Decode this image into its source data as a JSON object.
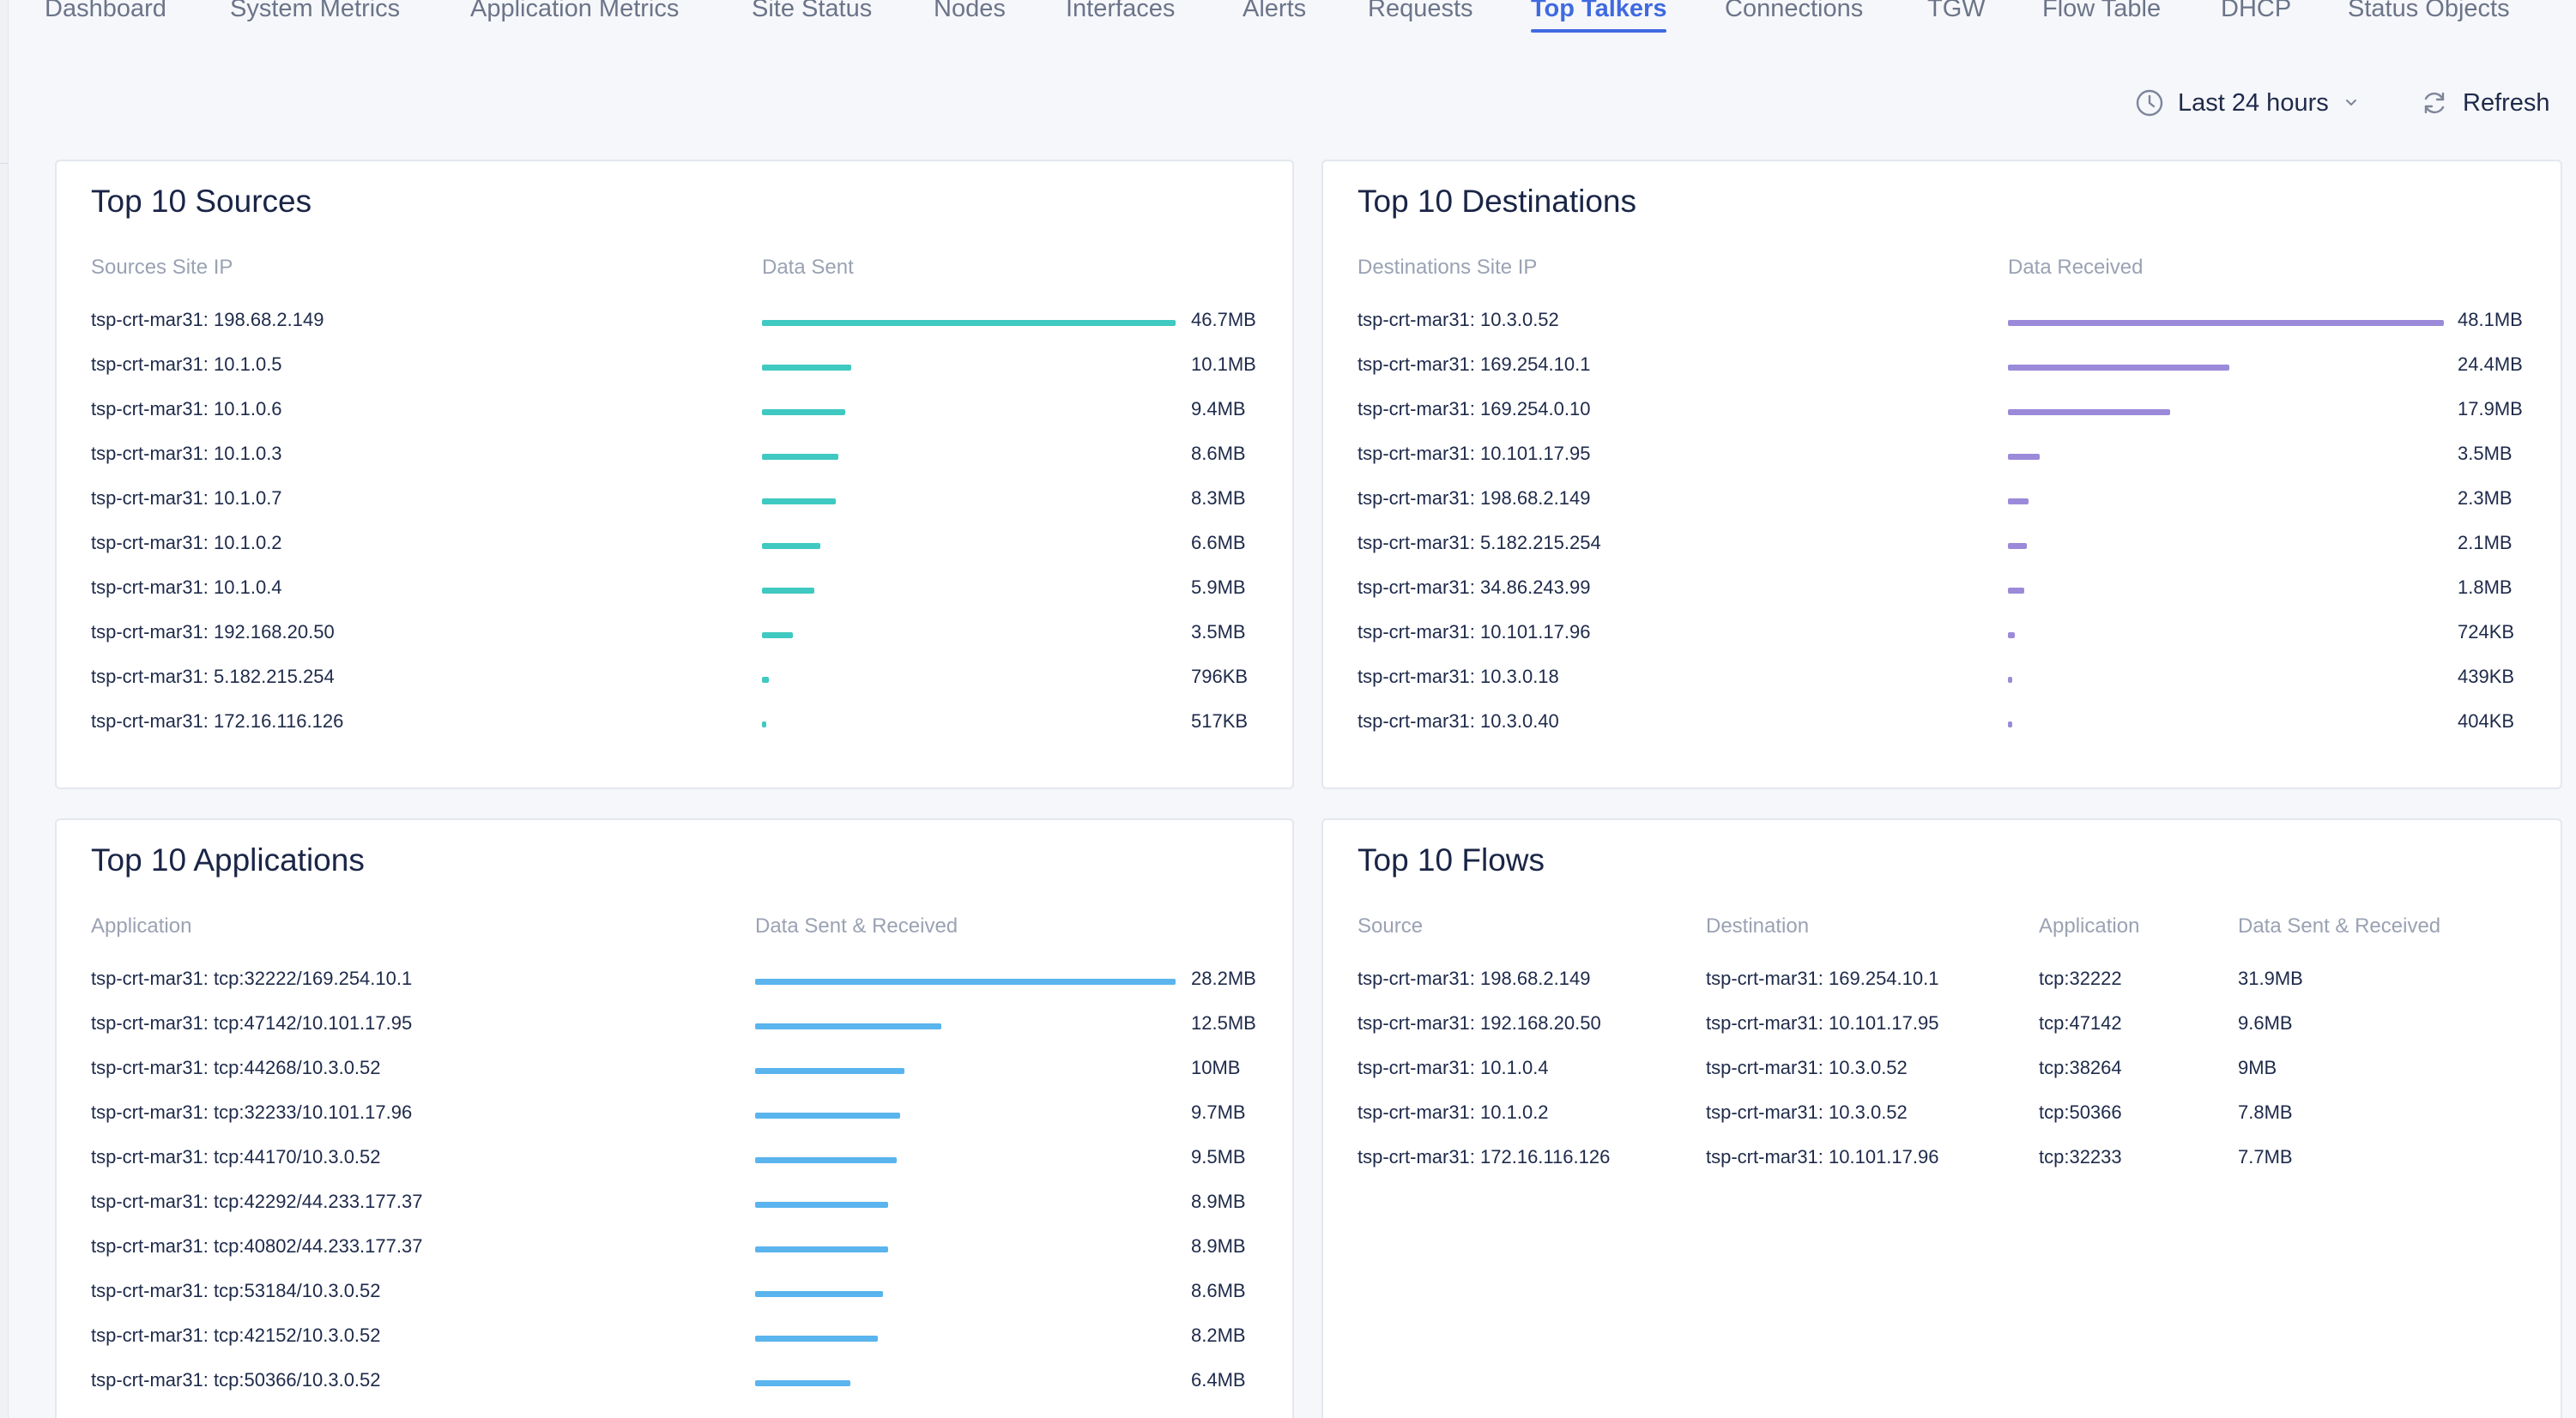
{
  "tabs": [
    {
      "label": "Dashboard",
      "active": false
    },
    {
      "label": "System Metrics",
      "active": false
    },
    {
      "label": "Application Metrics",
      "active": false
    },
    {
      "label": "Site Status",
      "active": false
    },
    {
      "label": "Nodes",
      "active": false
    },
    {
      "label": "Interfaces",
      "active": false
    },
    {
      "label": "Alerts",
      "active": false
    },
    {
      "label": "Requests",
      "active": false
    },
    {
      "label": "Top Talkers",
      "active": true
    },
    {
      "label": "Connections",
      "active": false
    },
    {
      "label": "TGW",
      "active": false
    },
    {
      "label": "Flow Table",
      "active": false
    },
    {
      "label": "DHCP",
      "active": false
    },
    {
      "label": "Status Objects",
      "active": false
    }
  ],
  "toolbar": {
    "time_range_label": "Last 24 hours",
    "time_icon": "clock-icon",
    "refresh_label": "Refresh",
    "refresh_icon": "refresh-icon"
  },
  "colors": {
    "accent": "#3f6ae0",
    "sources_bar": "#3fc9c1",
    "destinations_bar": "#9b8ad9",
    "applications_bar": "#5ab4ee"
  },
  "sources": {
    "title": "Top 10 Sources",
    "col_label": "Sources Site IP",
    "col_value": "Data Sent",
    "rows": [
      {
        "label": "tsp-crt-mar31: 198.68.2.149",
        "value": "46.7MB",
        "fraction": 1.0
      },
      {
        "label": "tsp-crt-mar31: 10.1.0.5",
        "value": "10.1MB",
        "fraction": 0.216
      },
      {
        "label": "tsp-crt-mar31: 10.1.0.6",
        "value": "9.4MB",
        "fraction": 0.201
      },
      {
        "label": "tsp-crt-mar31: 10.1.0.3",
        "value": "8.6MB",
        "fraction": 0.184
      },
      {
        "label": "tsp-crt-mar31: 10.1.0.7",
        "value": "8.3MB",
        "fraction": 0.178
      },
      {
        "label": "tsp-crt-mar31: 10.1.0.2",
        "value": "6.6MB",
        "fraction": 0.141
      },
      {
        "label": "tsp-crt-mar31: 10.1.0.4",
        "value": "5.9MB",
        "fraction": 0.126
      },
      {
        "label": "tsp-crt-mar31: 192.168.20.50",
        "value": "3.5MB",
        "fraction": 0.075
      },
      {
        "label": "tsp-crt-mar31: 5.182.215.254",
        "value": "796KB",
        "fraction": 0.017
      },
      {
        "label": "tsp-crt-mar31: 172.16.116.126",
        "value": "517KB",
        "fraction": 0.011
      }
    ]
  },
  "destinations": {
    "title": "Top 10 Destinations",
    "col_label": "Destinations Site IP",
    "col_value": "Data Received",
    "rows": [
      {
        "label": "tsp-crt-mar31: 10.3.0.52",
        "value": "48.1MB",
        "fraction": 1.0
      },
      {
        "label": "tsp-crt-mar31: 169.254.10.1",
        "value": "24.4MB",
        "fraction": 0.507
      },
      {
        "label": "tsp-crt-mar31: 169.254.0.10",
        "value": "17.9MB",
        "fraction": 0.372
      },
      {
        "label": "tsp-crt-mar31: 10.101.17.95",
        "value": "3.5MB",
        "fraction": 0.073
      },
      {
        "label": "tsp-crt-mar31: 198.68.2.149",
        "value": "2.3MB",
        "fraction": 0.048
      },
      {
        "label": "tsp-crt-mar31: 5.182.215.254",
        "value": "2.1MB",
        "fraction": 0.044
      },
      {
        "label": "tsp-crt-mar31: 34.86.243.99",
        "value": "1.8MB",
        "fraction": 0.037
      },
      {
        "label": "tsp-crt-mar31: 10.101.17.96",
        "value": "724KB",
        "fraction": 0.015
      },
      {
        "label": "tsp-crt-mar31: 10.3.0.18",
        "value": "439KB",
        "fraction": 0.009
      },
      {
        "label": "tsp-crt-mar31: 10.3.0.40",
        "value": "404KB",
        "fraction": 0.008
      }
    ]
  },
  "applications": {
    "title": "Top 10 Applications",
    "col_label": "Application",
    "col_value": "Data Sent & Received",
    "rows": [
      {
        "label": "tsp-crt-mar31: tcp:32222/169.254.10.1",
        "value": "28.2MB",
        "fraction": 1.0
      },
      {
        "label": "tsp-crt-mar31: tcp:47142/10.101.17.95",
        "value": "12.5MB",
        "fraction": 0.443
      },
      {
        "label": "tsp-crt-mar31: tcp:44268/10.3.0.52",
        "value": "10MB",
        "fraction": 0.355
      },
      {
        "label": "tsp-crt-mar31: tcp:32233/10.101.17.96",
        "value": "9.7MB",
        "fraction": 0.344
      },
      {
        "label": "tsp-crt-mar31: tcp:44170/10.3.0.52",
        "value": "9.5MB",
        "fraction": 0.337
      },
      {
        "label": "tsp-crt-mar31: tcp:42292/44.233.177.37",
        "value": "8.9MB",
        "fraction": 0.316
      },
      {
        "label": "tsp-crt-mar31: tcp:40802/44.233.177.37",
        "value": "8.9MB",
        "fraction": 0.316
      },
      {
        "label": "tsp-crt-mar31: tcp:53184/10.3.0.52",
        "value": "8.6MB",
        "fraction": 0.305
      },
      {
        "label": "tsp-crt-mar31: tcp:42152/10.3.0.52",
        "value": "8.2MB",
        "fraction": 0.291
      },
      {
        "label": "tsp-crt-mar31: tcp:50366/10.3.0.52",
        "value": "6.4MB",
        "fraction": 0.227
      }
    ]
  },
  "flows": {
    "title": "Top 10 Flows",
    "columns": [
      "Source",
      "Destination",
      "Application",
      "Data Sent & Received"
    ],
    "rows": [
      {
        "source": "tsp-crt-mar31: 198.68.2.149",
        "destination": "tsp-crt-mar31: 169.254.10.1",
        "application": "tcp:32222",
        "data": "31.9MB"
      },
      {
        "source": "tsp-crt-mar31: 192.168.20.50",
        "destination": "tsp-crt-mar31: 10.101.17.95",
        "application": "tcp:47142",
        "data": "9.6MB"
      },
      {
        "source": "tsp-crt-mar31: 10.1.0.4",
        "destination": "tsp-crt-mar31: 10.3.0.52",
        "application": "tcp:38264",
        "data": "9MB"
      },
      {
        "source": "tsp-crt-mar31: 10.1.0.2",
        "destination": "tsp-crt-mar31: 10.3.0.52",
        "application": "tcp:50366",
        "data": "7.8MB"
      },
      {
        "source": "tsp-crt-mar31: 172.16.116.126",
        "destination": "tsp-crt-mar31: 10.101.17.96",
        "application": "tcp:32233",
        "data": "7.7MB"
      }
    ]
  }
}
